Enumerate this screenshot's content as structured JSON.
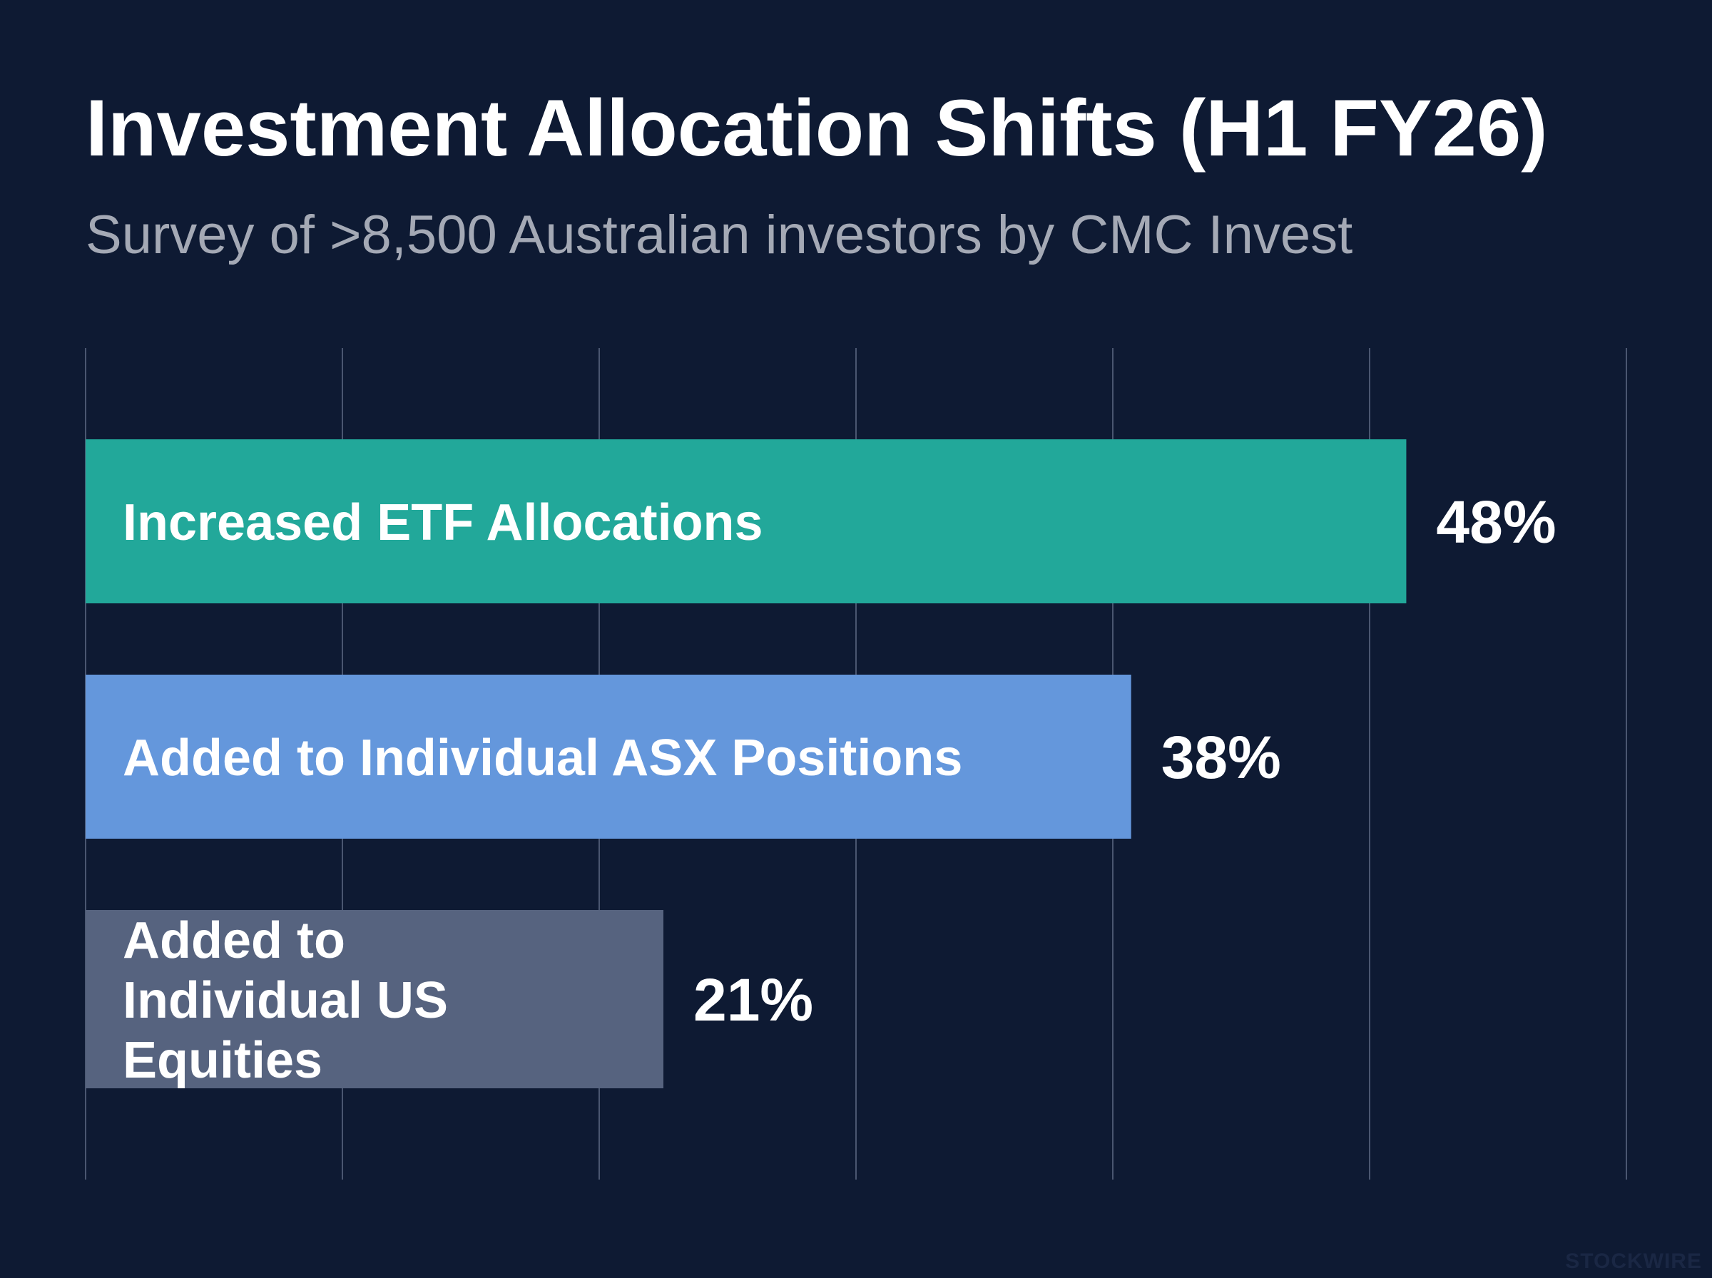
{
  "chart_data": {
    "type": "bar",
    "orientation": "horizontal",
    "title": "Investment Allocation Shifts (H1 FY26)",
    "subtitle": "Survey of >8,500 Australian investors by CMC Invest",
    "categories": [
      "Increased ETF Allocations",
      "Added to Individual ASX Positions",
      "Added to Individual US Equities"
    ],
    "values": [
      48,
      38,
      21
    ],
    "value_labels": [
      "48%",
      "38%",
      "21%"
    ],
    "bar_colors": [
      "#22a89a",
      "#6497dc",
      "#56637f"
    ],
    "xlim": [
      0,
      56
    ],
    "grid_step": 9.33,
    "grid": true,
    "xlabel": "",
    "ylabel": ""
  },
  "colors": {
    "background": "#0e1a33",
    "gridline": "#4a5670",
    "title": "#ffffff",
    "subtitle": "#a4a9b5"
  },
  "watermark": "STOCKWIRE"
}
